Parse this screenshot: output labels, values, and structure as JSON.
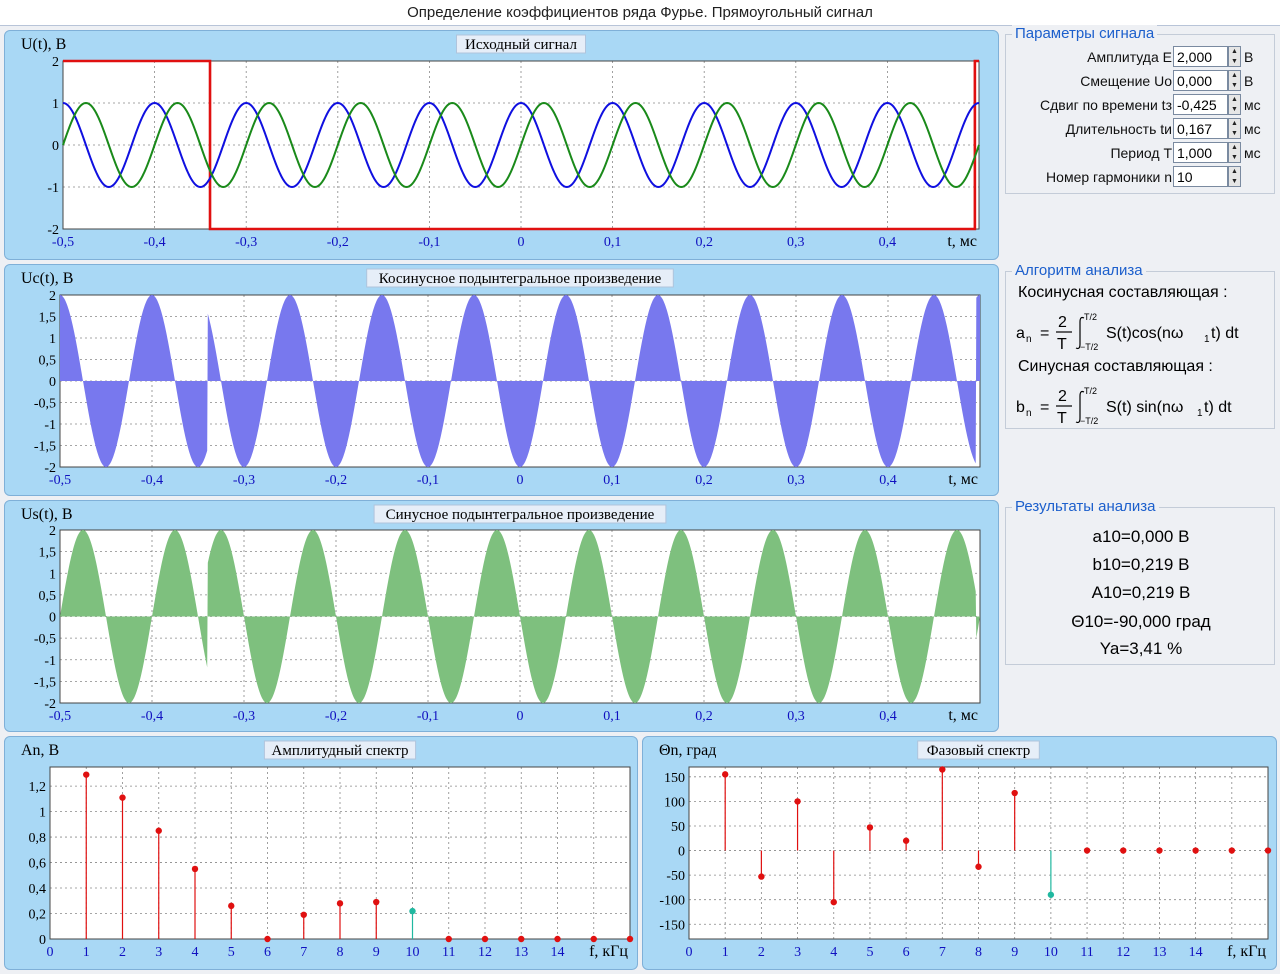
{
  "window": {
    "title": "Определение коэффициентов ряда Фурье. Прямоугольный сигнал"
  },
  "charts": {
    "signal": {
      "title": "Исходный сигнал",
      "ylabel": "U(t), В",
      "xlabel": "t, мс"
    },
    "cosine": {
      "title": "Косинусное подынтегральное произведение",
      "ylabel": "Uc(t), В",
      "xlabel": "t, мс"
    },
    "sine": {
      "title": "Синусное подынтегральное произведение",
      "ylabel": "Us(t), В",
      "xlabel": "t, мс"
    },
    "amp": {
      "title": "Амплитудный спектр",
      "ylabel": "An, В",
      "xlabel": "f, кГц"
    },
    "phase": {
      "title": "Фазовый спектр",
      "ylabel": "Θn, град",
      "xlabel": "f, кГц"
    }
  },
  "params": {
    "title": "Параметры сигнала",
    "rows": [
      {
        "label": "Амплитуда  E",
        "value": "2,000",
        "unit": "В"
      },
      {
        "label": "Смещение  Uo",
        "value": "0,000",
        "unit": "В"
      },
      {
        "label": "Сдвиг по времени  tз",
        "value": "-0,425",
        "unit": "мс"
      },
      {
        "label": "Длительность  tи",
        "value": "0,167",
        "unit": "мс"
      },
      {
        "label": "Период  T",
        "value": "1,000",
        "unit": "мс"
      },
      {
        "label": "Номер гармоники  n",
        "value": "10",
        "unit": ""
      }
    ]
  },
  "algorithm": {
    "title": "Алгоритм анализа",
    "cos_heading": "Косинусная составляющая :",
    "sin_heading": "Синусная составляющая :",
    "cos_formula": {
      "lhs": "a",
      "sub": "n",
      "eq": "=",
      "num": "2",
      "den": "T",
      "upper": "T/2",
      "lower": "−T/2",
      "body": "S(t)cos(nω",
      "body_sub": "1",
      "body_end": "t) dt"
    },
    "sin_formula": {
      "lhs": "b",
      "sub": "n",
      "eq": "=",
      "num": "2",
      "den": "T",
      "upper": "T/2",
      "lower": "−T/2",
      "body": "S(t) sin(nω",
      "body_sub": "1",
      "body_end": "t)  dt"
    }
  },
  "results": {
    "title": "Результаты анализа",
    "lines": [
      "a10=0,000 В",
      "b10=0,219 В",
      "A10=0,219 В",
      "Θ10=-90,000 град",
      "Ya=3,41 %"
    ]
  },
  "colors": {
    "panel": "#a9d8f5",
    "red": "#e01010",
    "blue": "#1010e0",
    "green": "#1a8a1a",
    "cos_fill": "#7878ee",
    "sin_fill": "#7ec07e",
    "teal": "#20b8a0"
  },
  "chart_data": [
    {
      "type": "line",
      "title": "Исходный сигнал",
      "xlabel": "t, мс",
      "ylabel": "U(t), В",
      "xlim": [
        -0.5,
        0.5
      ],
      "ylim": [
        -2,
        2
      ],
      "xticks": [
        -0.5,
        -0.4,
        -0.3,
        -0.2,
        -0.1,
        0,
        0.1,
        0.2,
        0.3,
        0.4
      ],
      "xticklabels": [
        "-0,5",
        "-0,4",
        "-0,3",
        "-0,2",
        "-0,1",
        "0",
        "0,1",
        "0,2",
        "0,3",
        "0,4"
      ],
      "yticks": [
        2,
        1,
        0,
        -1,
        -2
      ],
      "yticklabels": [
        "2",
        "1",
        "0",
        "-1",
        "-2"
      ],
      "series": [
        {
          "kind": "pulse",
          "color": "red",
          "pulses": [
            [
              -0.5,
              -0.3395
            ],
            [
              0.4955,
              0.5
            ]
          ],
          "high": 2,
          "low": -2
        },
        {
          "kind": "cos",
          "color": "blue",
          "amplitude": 1,
          "harmonic": 10
        },
        {
          "kind": "sin",
          "color": "green",
          "amplitude": 1,
          "harmonic": 10
        }
      ]
    },
    {
      "type": "area",
      "title": "Косинусное подынтегральное произведение",
      "xlabel": "t, мс",
      "ylabel": "Uc(t), В",
      "xlim": [
        -0.5,
        0.5
      ],
      "ylim": [
        -2,
        2
      ],
      "xticks": [
        -0.5,
        -0.4,
        -0.3,
        -0.2,
        -0.1,
        0,
        0.1,
        0.2,
        0.3,
        0.4
      ],
      "xticklabels": [
        "-0,5",
        "-0,4",
        "-0,3",
        "-0,2",
        "-0,1",
        "0",
        "0,1",
        "0,2",
        "0,3",
        "0,4"
      ],
      "yticks": [
        2,
        1.5,
        1,
        0.5,
        0,
        -0.5,
        -1,
        -1.5,
        -2
      ],
      "yticklabels": [
        "2",
        "1,5",
        "1",
        "0,5",
        "0",
        "-0,5",
        "-1",
        "-1,5",
        "-2"
      ],
      "series": [
        {
          "kind": "product-cos",
          "color": "cos_fill",
          "harmonic": 10
        }
      ]
    },
    {
      "type": "area",
      "title": "Синусное подынтегральное произведение",
      "xlabel": "t, мс",
      "ylabel": "Us(t), В",
      "xlim": [
        -0.5,
        0.5
      ],
      "ylim": [
        -2,
        2
      ],
      "xticks": [
        -0.5,
        -0.4,
        -0.3,
        -0.2,
        -0.1,
        0,
        0.1,
        0.2,
        0.3,
        0.4
      ],
      "xticklabels": [
        "-0,5",
        "-0,4",
        "-0,3",
        "-0,2",
        "-0,1",
        "0",
        "0,1",
        "0,2",
        "0,3",
        "0,4"
      ],
      "yticks": [
        2,
        1.5,
        1,
        0.5,
        0,
        -0.5,
        -1,
        -1.5,
        -2
      ],
      "yticklabels": [
        "2",
        "1,5",
        "1",
        "0,5",
        "0",
        "-0,5",
        "-1",
        "-1,5",
        "-2"
      ],
      "series": [
        {
          "kind": "product-sin",
          "color": "sin_fill",
          "harmonic": 10
        }
      ]
    },
    {
      "type": "stem",
      "title": "Амплитудный спектр",
      "xlabel": "f, кГц",
      "ylabel": "An, В",
      "xlim": [
        0,
        16
      ],
      "ylim": [
        0,
        1.35
      ],
      "xticks": [
        0,
        1,
        2,
        3,
        4,
        5,
        6,
        7,
        8,
        9,
        10,
        11,
        12,
        13,
        14,
        15
      ],
      "xticklabels": [
        "0",
        "1",
        "2",
        "3",
        "4",
        "5",
        "6",
        "7",
        "8",
        "9",
        "10",
        "11",
        "12",
        "13",
        "14",
        ""
      ],
      "yticks": [
        0,
        0.2,
        0.4,
        0.6,
        0.8,
        1.0,
        1.2
      ],
      "yticklabels": [
        "0",
        "0,2",
        "0,4",
        "0,6",
        "0,8",
        "1",
        "1,2"
      ],
      "x": [
        1,
        2,
        3,
        4,
        5,
        6,
        7,
        8,
        9,
        10,
        11,
        12,
        13,
        14,
        15,
        16
      ],
      "values": [
        1.29,
        1.11,
        0.85,
        0.55,
        0.26,
        0.0,
        0.19,
        0.28,
        0.29,
        0.219,
        0.0,
        0.0,
        0.0,
        0.0,
        0.0,
        0.0
      ],
      "highlight_index": 9
    },
    {
      "type": "stem",
      "title": "Фазовый спектр",
      "xlabel": "f, кГц",
      "ylabel": "Θn, град",
      "xlim": [
        0,
        16
      ],
      "ylim": [
        -180,
        170
      ],
      "xticks": [
        0,
        1,
        2,
        3,
        4,
        5,
        6,
        7,
        8,
        9,
        10,
        11,
        12,
        13,
        14,
        15
      ],
      "xticklabels": [
        "0",
        "1",
        "2",
        "3",
        "4",
        "5",
        "6",
        "7",
        "8",
        "9",
        "10",
        "11",
        "12",
        "13",
        "14",
        ""
      ],
      "yticks": [
        150,
        100,
        50,
        0,
        -50,
        -100,
        -150
      ],
      "yticklabels": [
        "150",
        "100",
        "50",
        "0",
        "-50",
        "-100",
        "-150"
      ],
      "x": [
        1,
        2,
        3,
        4,
        5,
        6,
        7,
        8,
        9,
        10,
        11,
        12,
        13,
        14,
        15,
        16
      ],
      "values": [
        155,
        -53,
        100,
        -105,
        47,
        20,
        165,
        -33,
        117,
        -90,
        0,
        0,
        0,
        0,
        0,
        0
      ],
      "highlight_index": 9
    }
  ]
}
